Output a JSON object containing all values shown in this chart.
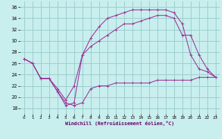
{
  "xlabel": "Windchill (Refroidissement éolien,°C)",
  "background_color": "#c8eeed",
  "grid_color": "#99cccc",
  "line_color": "#993399",
  "ylim": [
    17,
    37
  ],
  "xlim": [
    -0.5,
    23.5
  ],
  "yticks": [
    18,
    20,
    22,
    24,
    26,
    28,
    30,
    32,
    34,
    36
  ],
  "xticks": [
    0,
    1,
    2,
    3,
    4,
    5,
    6,
    7,
    8,
    9,
    10,
    11,
    12,
    13,
    14,
    15,
    16,
    17,
    18,
    19,
    20,
    21,
    22,
    23
  ],
  "line1_x": [
    0,
    1,
    2,
    3,
    4,
    5,
    6,
    7,
    8,
    9,
    10,
    11,
    12,
    13,
    14,
    15,
    16,
    17,
    18,
    19,
    20,
    21,
    22,
    23
  ],
  "line1_y": [
    26.8,
    26.0,
    23.3,
    23.3,
    21.0,
    19.0,
    18.5,
    19.0,
    21.5,
    22.0,
    22.0,
    22.5,
    22.5,
    22.5,
    22.5,
    22.5,
    23.0,
    23.0,
    23.0,
    23.0,
    23.0,
    23.5,
    23.5,
    23.5
  ],
  "line2_x": [
    0,
    1,
    2,
    3,
    4,
    5,
    6,
    7,
    8,
    9,
    10,
    11,
    12,
    13,
    14,
    15,
    16,
    17,
    18,
    19,
    20,
    21,
    22,
    23
  ],
  "line2_y": [
    26.8,
    26.0,
    23.3,
    23.3,
    21.0,
    18.5,
    19.0,
    27.5,
    30.5,
    32.5,
    34.0,
    34.5,
    35.0,
    35.5,
    35.5,
    35.5,
    35.5,
    35.5,
    35.0,
    33.0,
    27.5,
    25.0,
    24.5,
    23.5
  ],
  "line3_x": [
    0,
    1,
    2,
    3,
    4,
    5,
    6,
    7,
    8,
    9,
    10,
    11,
    12,
    13,
    14,
    15,
    16,
    17,
    18,
    19,
    20,
    21,
    22,
    23
  ],
  "line3_y": [
    26.8,
    26.0,
    23.3,
    23.3,
    21.5,
    19.5,
    22.0,
    27.5,
    29.0,
    30.0,
    31.0,
    32.0,
    33.0,
    33.0,
    33.5,
    34.0,
    34.5,
    34.5,
    34.0,
    31.0,
    31.0,
    27.5,
    25.0,
    23.5
  ]
}
